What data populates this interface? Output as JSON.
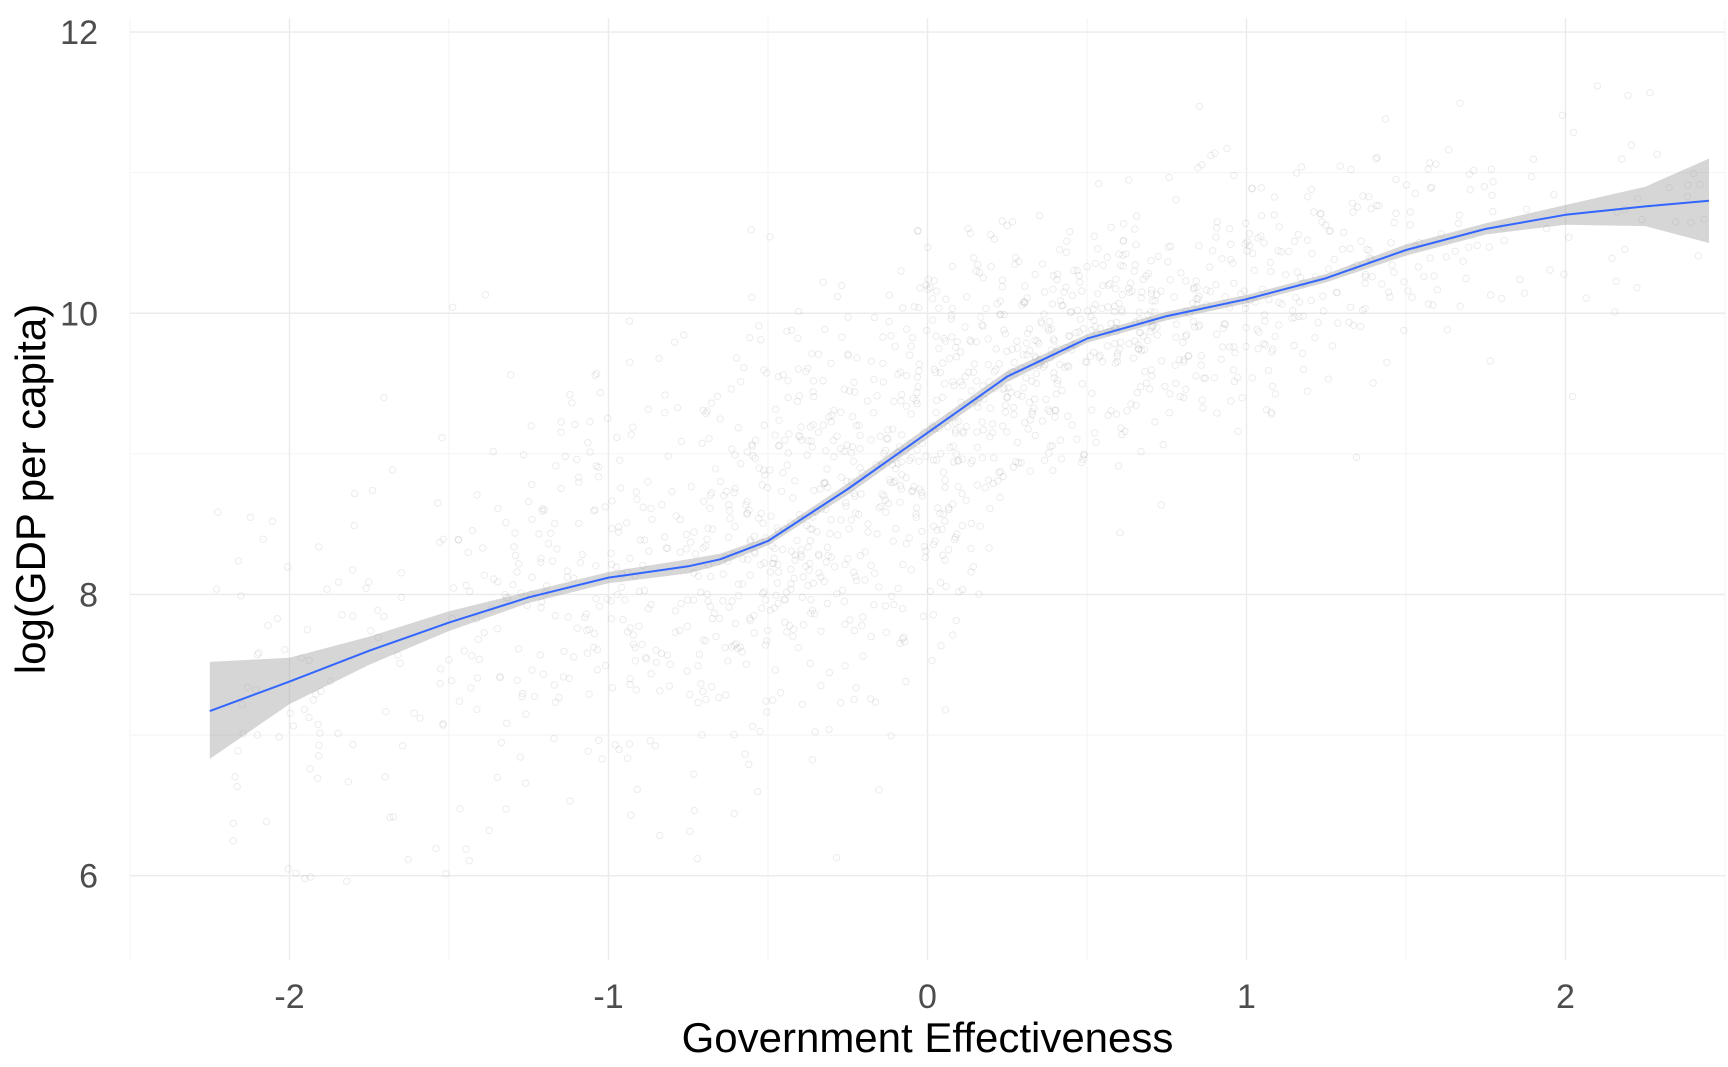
{
  "chart_data": {
    "type": "scatter",
    "title": "",
    "xlabel": "Government Effectiveness",
    "ylabel": "log(GDP per capita)",
    "xlim": [
      -2.5,
      2.5
    ],
    "ylim": [
      5.4,
      12.1
    ],
    "x_ticks": [
      -2,
      -1,
      0,
      1,
      2
    ],
    "x_tick_labels": [
      "-2",
      "-1",
      "0",
      "1",
      "2"
    ],
    "y_ticks": [
      6,
      8,
      10,
      12
    ],
    "y_tick_labels": [
      "6",
      "8",
      "10",
      "12"
    ],
    "grid": true,
    "legend": "none",
    "n_points": 1600,
    "point_color": "#808080",
    "point_opacity": 0.15,
    "smooth": {
      "method": "loess",
      "color": "#3366FF",
      "ribbon_color": "#999999",
      "x": [
        -2.25,
        -2.0,
        -1.75,
        -1.5,
        -1.25,
        -1.0,
        -0.75,
        -0.65,
        -0.5,
        -0.25,
        0.0,
        0.25,
        0.5,
        0.75,
        1.0,
        1.25,
        1.5,
        1.75,
        2.0,
        2.25,
        2.45
      ],
      "y": [
        7.17,
        7.38,
        7.6,
        7.8,
        7.98,
        8.12,
        8.2,
        8.25,
        8.38,
        8.75,
        9.15,
        9.55,
        9.82,
        9.98,
        10.1,
        10.25,
        10.45,
        10.6,
        10.7,
        10.76,
        10.8
      ],
      "ymin": [
        6.83,
        7.22,
        7.5,
        7.74,
        7.94,
        8.08,
        8.15,
        8.21,
        8.35,
        8.71,
        9.11,
        9.51,
        9.79,
        9.95,
        10.07,
        10.22,
        10.41,
        10.56,
        10.63,
        10.62,
        10.5
      ],
      "ymax": [
        7.52,
        7.55,
        7.7,
        7.88,
        8.02,
        8.16,
        8.25,
        8.29,
        8.41,
        8.79,
        9.19,
        9.59,
        9.85,
        10.01,
        10.13,
        10.28,
        10.49,
        10.64,
        10.77,
        10.9,
        11.1
      ]
    }
  }
}
